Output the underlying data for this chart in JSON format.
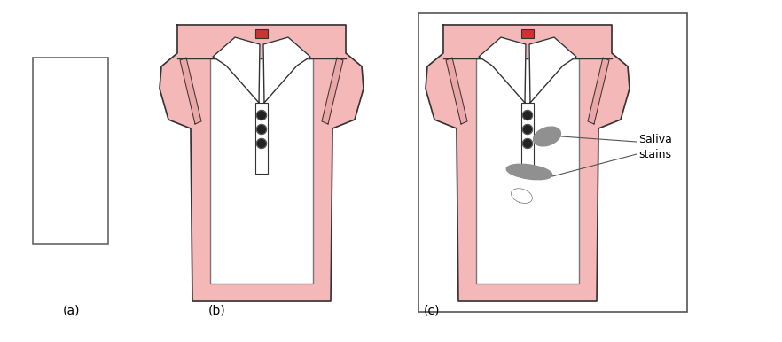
{
  "bg_color": "#ffffff",
  "shirt_pink": "#f5b8b8",
  "shirt_pink_dark": "#e89090",
  "shirt_pink_shadow": "#e8a0a0",
  "outline_color": "#555555",
  "outline_dark": "#333333",
  "button_color": "#222222",
  "stain_color": "#909090",
  "stain_edge": "#707070",
  "paper_color": "#ffffff",
  "paper_edge": "#777777",
  "tag_color": "#cc3333",
  "label_color": "#000000",
  "annotation_color": "#555555",
  "label_a": "(a)",
  "label_b": "(b)",
  "label_c": "(c)",
  "saliva_label": "Saliva\nstains",
  "figsize": [
    8.82,
    3.86
  ],
  "dpi": 100
}
